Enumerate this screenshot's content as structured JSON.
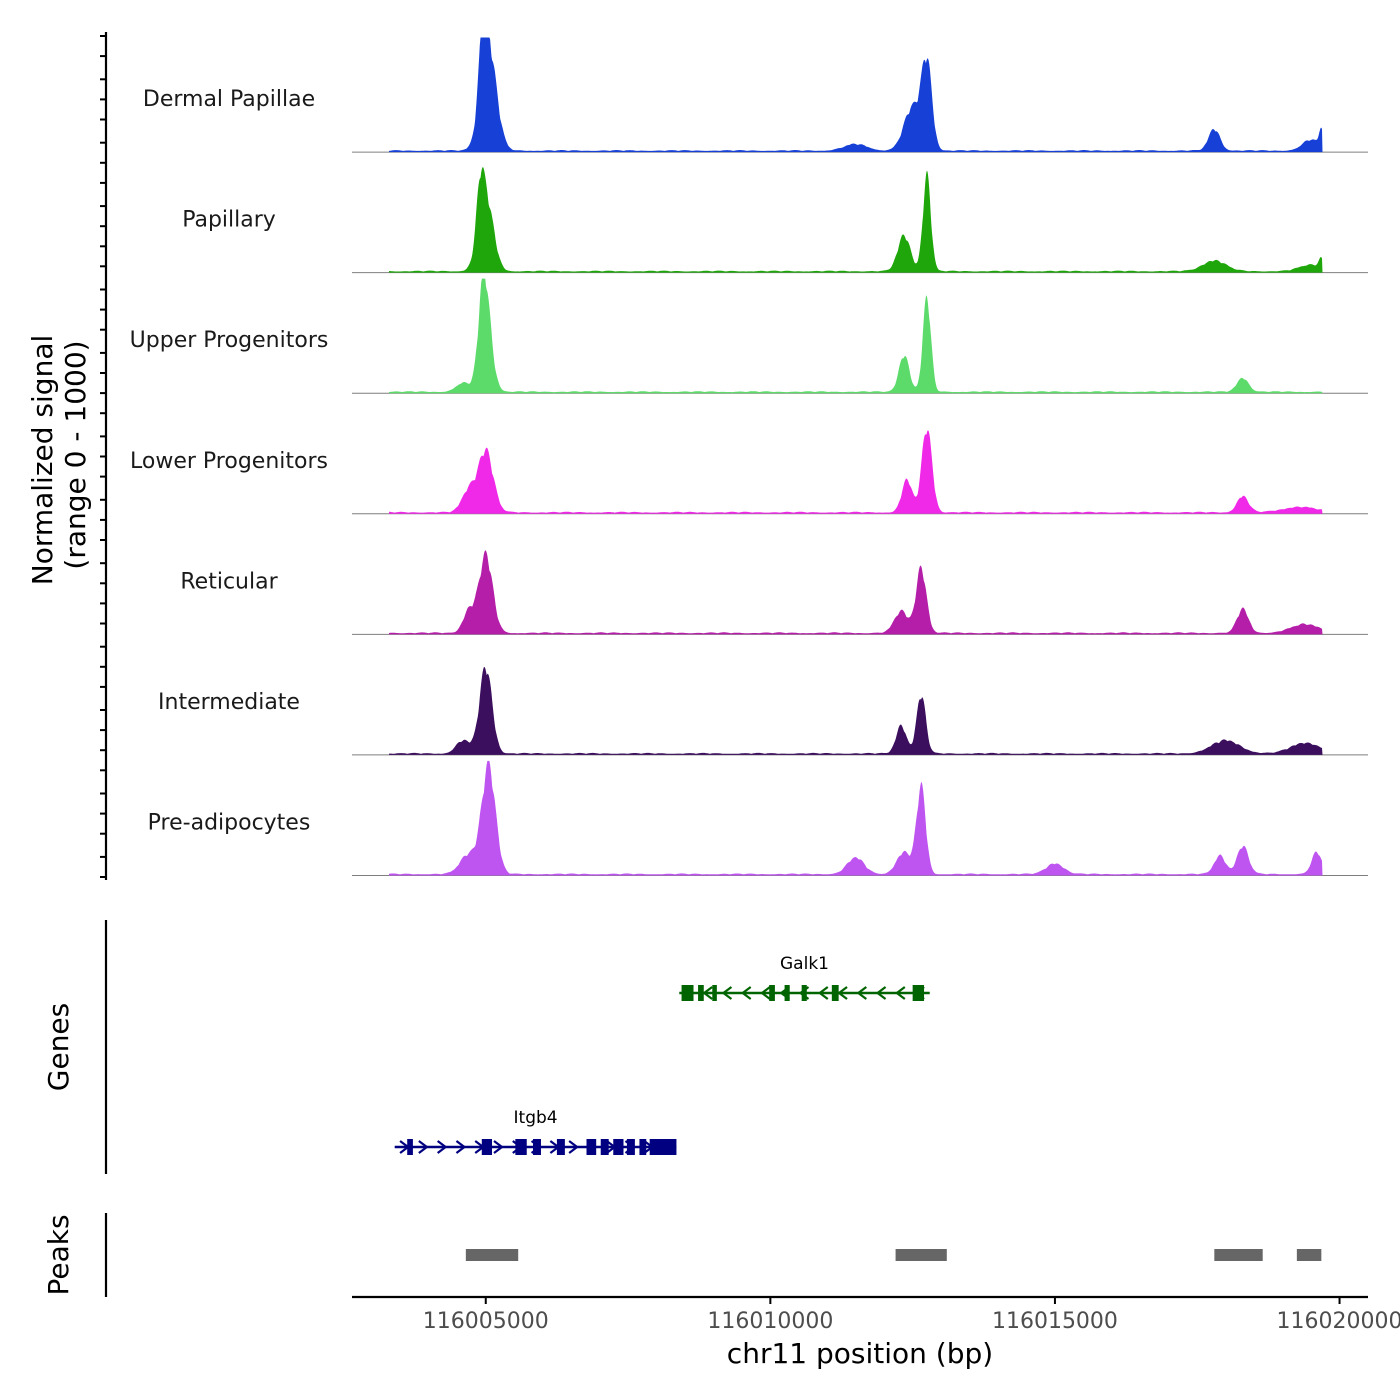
{
  "chart_data": {
    "type": "area",
    "title": "",
    "chromosome": "chr11",
    "xlabel": "chr11 position (bp)",
    "ylabel": "Normalized signal",
    "ylabel_sub": "(range 0 - 1000)",
    "xlim": [
      116002650,
      116020500
    ],
    "ylim": [
      0,
      1000
    ],
    "x_ticks": [
      116005000,
      116010000,
      116015000,
      116020000
    ],
    "x_tick_labels": [
      "116005000",
      "116010000",
      "116015000",
      "116020000"
    ],
    "signal_extent": [
      116003300,
      116019700
    ],
    "colors": {
      "axis": "#000000",
      "baseline": "#7f7f7f",
      "peak_bar": "#666666",
      "gene_plus": "#000080",
      "gene_minus": "#006400"
    },
    "tracks": [
      {
        "name": "Dermal Papillae",
        "color": "#1640d6",
        "peaks": [
          [
            116005050,
            940,
            140
          ],
          [
            116004950,
            560,
            70
          ],
          [
            116012500,
            400,
            150
          ],
          [
            116012750,
            780,
            90
          ],
          [
            116017800,
            200,
            100
          ],
          [
            116019500,
            100,
            150
          ],
          [
            116019680,
            150,
            40
          ],
          [
            116011500,
            60,
            200
          ]
        ]
      },
      {
        "name": "Papillary",
        "color": "#1fa60a",
        "peaks": [
          [
            116005000,
            700,
            130
          ],
          [
            116004900,
            400,
            60
          ],
          [
            116012350,
            330,
            110
          ],
          [
            116012750,
            880,
            70
          ],
          [
            116017800,
            100,
            200
          ],
          [
            116019500,
            60,
            200
          ],
          [
            116019680,
            90,
            40
          ]
        ]
      },
      {
        "name": "Upper Progenitors",
        "color": "#5cdb6b",
        "peaks": [
          [
            116005000,
            690,
            110
          ],
          [
            116004950,
            460,
            80
          ],
          [
            116012350,
            340,
            90
          ],
          [
            116012750,
            870,
            70
          ],
          [
            116018300,
            130,
            100
          ],
          [
            116004600,
            80,
            120
          ]
        ]
      },
      {
        "name": "Lower Progenitors",
        "color": "#f028e8",
        "peaks": [
          [
            116005000,
            570,
            130
          ],
          [
            116004700,
            200,
            120
          ],
          [
            116012400,
            300,
            90
          ],
          [
            116012750,
            780,
            90
          ],
          [
            116018300,
            150,
            100
          ],
          [
            116019300,
            50,
            300
          ]
        ]
      },
      {
        "name": "Reticular",
        "color": "#b41ea8",
        "peaks": [
          [
            116005000,
            720,
            120
          ],
          [
            116004700,
            200,
            100
          ],
          [
            116012300,
            200,
            120
          ],
          [
            116012650,
            600,
            90
          ],
          [
            116018300,
            220,
            100
          ],
          [
            116019400,
            80,
            250
          ]
        ]
      },
      {
        "name": "Intermediate",
        "color": "#3c0e5e",
        "peaks": [
          [
            116005000,
            800,
            110
          ],
          [
            116004600,
            120,
            120
          ],
          [
            116012300,
            260,
            90
          ],
          [
            116012650,
            540,
            80
          ],
          [
            116018000,
            120,
            250
          ],
          [
            116019400,
            100,
            250
          ]
        ]
      },
      {
        "name": "Pre-adipocytes",
        "color": "#bf55f0",
        "peaks": [
          [
            116005050,
            1000,
            120
          ],
          [
            116004700,
            180,
            150
          ],
          [
            116011500,
            150,
            150
          ],
          [
            116012650,
            800,
            80
          ],
          [
            116012350,
            200,
            130
          ],
          [
            116015000,
            100,
            150
          ],
          [
            116018300,
            260,
            100
          ],
          [
            116017900,
            170,
            100
          ],
          [
            116019600,
            200,
            90
          ]
        ]
      }
    ],
    "genes": [
      {
        "name": "Galk1",
        "strand": "-",
        "color": "#006400",
        "start": 116008400,
        "end": 116012800,
        "exons": [
          [
            116008440,
            116008650
          ],
          [
            116008730,
            116008830
          ],
          [
            116008980,
            116009060
          ],
          [
            116009980,
            116010080
          ],
          [
            116010250,
            116010340
          ],
          [
            116010550,
            116010640
          ],
          [
            116011080,
            116011200
          ],
          [
            116012500,
            116012700
          ]
        ]
      },
      {
        "name": "Itgb4",
        "strand": "+",
        "color": "#000080",
        "start": 116003400,
        "end": 116008350,
        "exons": [
          [
            116003620,
            116003720
          ],
          [
            116004930,
            116005110
          ],
          [
            116005520,
            116005720
          ],
          [
            116005830,
            116005970
          ],
          [
            116006250,
            116006390
          ],
          [
            116006770,
            116006940
          ],
          [
            116007020,
            116007160
          ],
          [
            116007240,
            116007420
          ],
          [
            116007480,
            116007620
          ],
          [
            116007700,
            116007820
          ],
          [
            116007880,
            116008350
          ]
        ]
      }
    ],
    "peak_regions": [
      [
        116004650,
        116005570
      ],
      [
        116012200,
        116013100
      ],
      [
        116017800,
        116018650
      ],
      [
        116019250,
        116019680
      ]
    ]
  },
  "labels": {
    "genes_panel": "Genes",
    "peaks_panel": "Peaks"
  }
}
